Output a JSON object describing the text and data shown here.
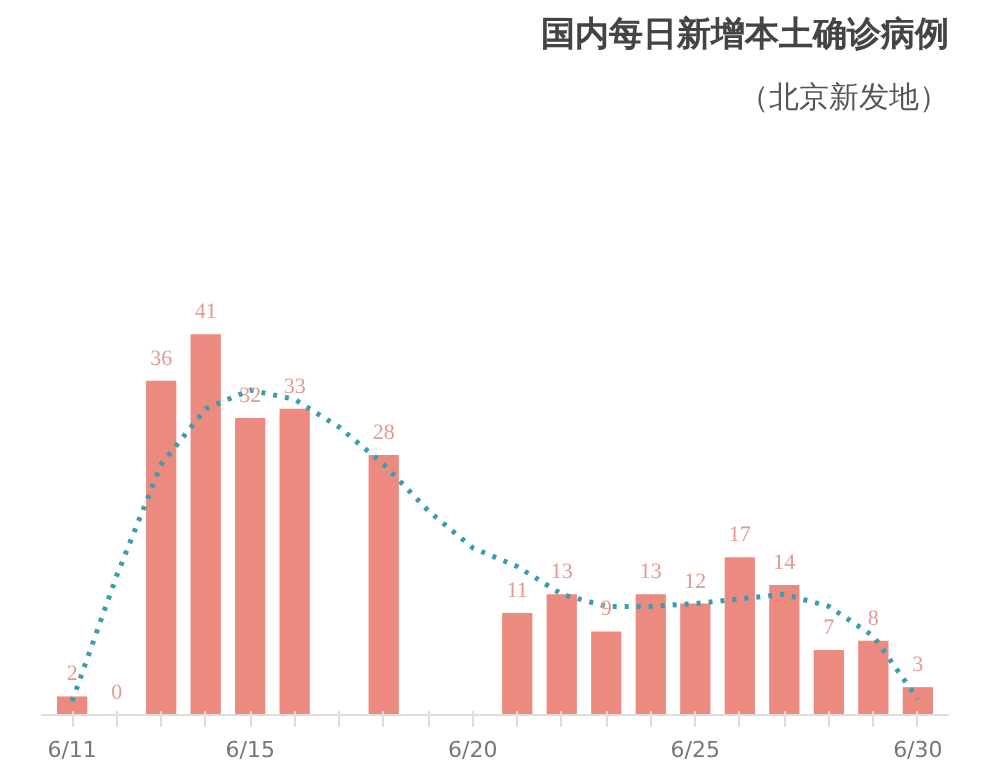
{
  "chart_data": {
    "type": "bar",
    "title": "国内每日新增本土确诊病例",
    "subtitle": "（北京新发地）",
    "categories": [
      "6/11",
      null,
      null,
      null,
      "6/15",
      null,
      null,
      null,
      null,
      "6/20",
      null,
      null,
      null,
      null,
      "6/25",
      null,
      null,
      null,
      null,
      "6/30"
    ],
    "series": [
      {
        "color": "#ec8a80",
        "values": [
          2,
          0,
          36,
          41,
          32,
          33,
          null,
          28,
          null,
          null,
          11,
          13,
          9,
          13,
          12,
          17,
          14,
          7,
          8,
          3
        ],
        "value_labels": [
          "2",
          "0",
          "36",
          "41",
          "32",
          "33",
          null,
          "28",
          null,
          null,
          "11",
          "13",
          "9",
          "13",
          "12",
          "17",
          "14",
          "7",
          "8",
          "3"
        ]
      },
      {
        "type": "line",
        "color": "#3a9cae",
        "line_style": "dotted",
        "values": [
          1.5,
          15,
          27,
          33,
          35,
          34,
          31,
          27,
          22,
          18,
          16,
          13,
          11.7,
          11.7,
          12,
          12.5,
          13,
          11.7,
          8.5,
          1.7
        ]
      }
    ],
    "grid": false,
    "marker": "none"
  }
}
